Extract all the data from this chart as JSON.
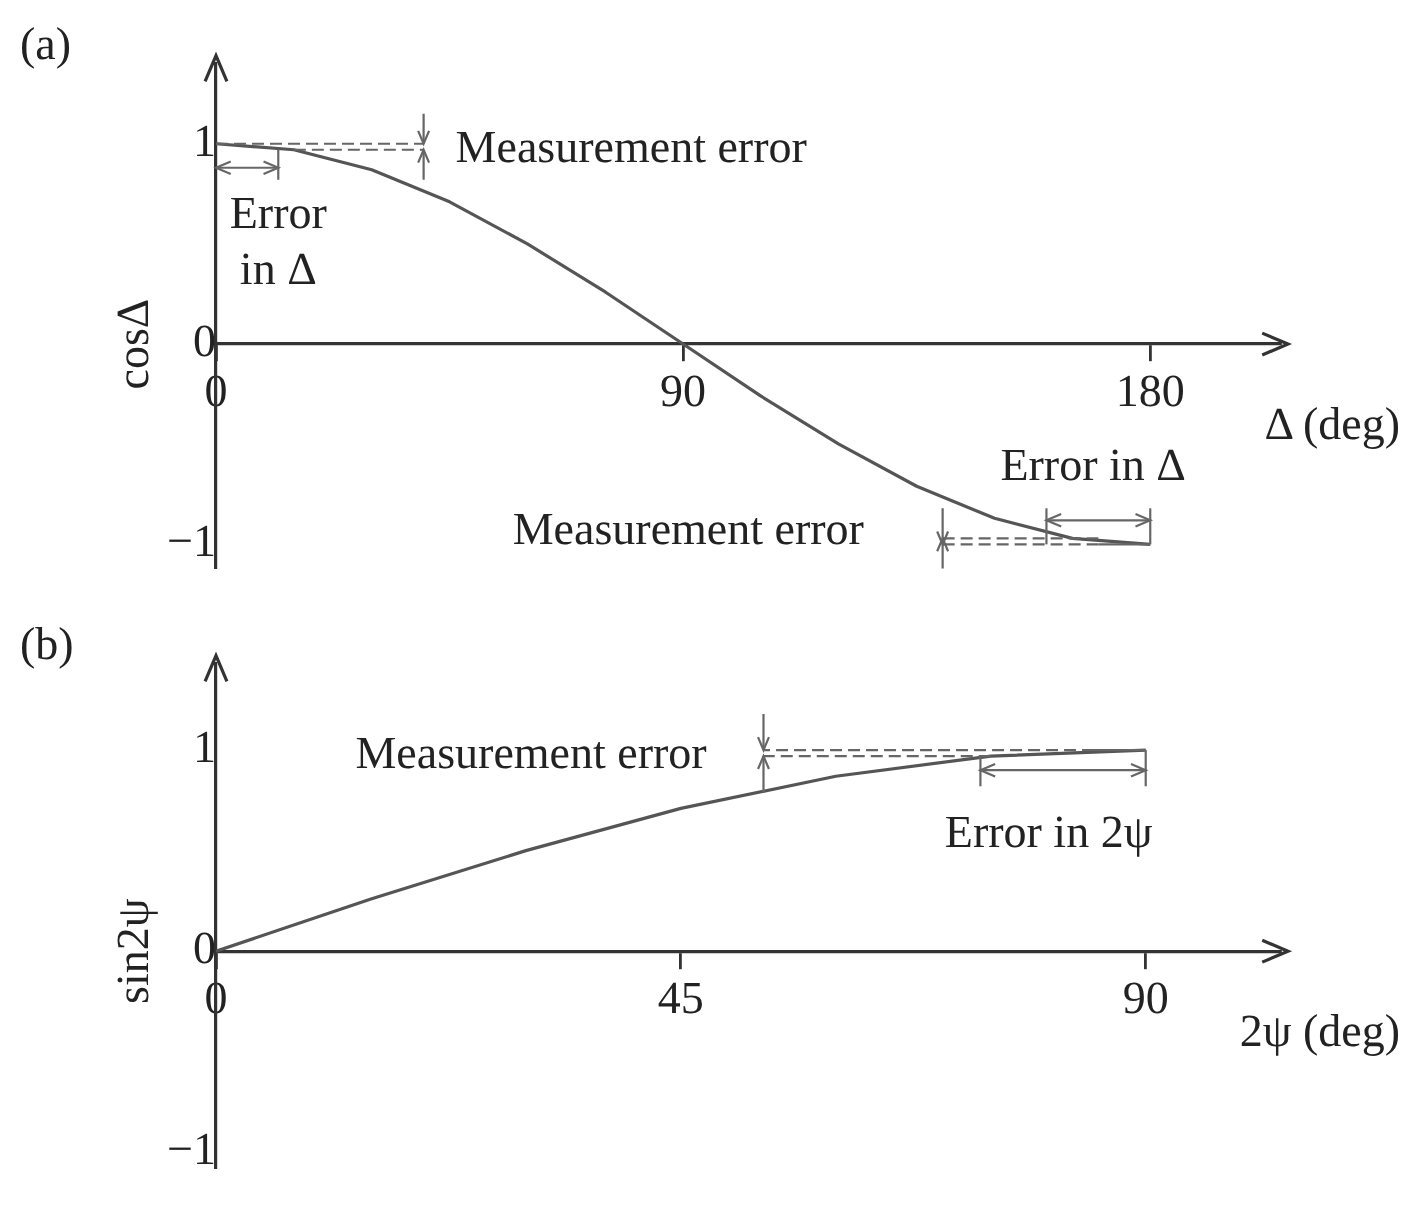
{
  "chart_data": [
    {
      "type": "line",
      "title": "(a)",
      "xlabel": "Δ (deg)",
      "ylabel": "cosΔ",
      "color": "#555555",
      "x": [
        0,
        15,
        30,
        45,
        60,
        75,
        90,
        105,
        120,
        135,
        150,
        165,
        180
      ],
      "values": [
        1,
        0.97,
        0.87,
        0.71,
        0.5,
        0.26,
        0,
        -0.26,
        -0.5,
        -0.71,
        -0.87,
        -0.97,
        -1
      ],
      "xlim": [
        0,
        205
      ],
      "ylim": [
        -1.12,
        1.4
      ],
      "xticks": [
        0,
        90,
        180
      ],
      "yticks": [
        -1,
        0,
        1
      ],
      "annotations": [
        {
          "text": "Measurement error",
          "x": 15,
          "y": 0.97
        },
        "Error\nin Δ",
        "Error in Δ",
        "Measurement error"
      ]
    },
    {
      "type": "line",
      "title": "(b)",
      "xlabel": "2ψ (deg)",
      "ylabel": "sin2ψ",
      "color": "#555555",
      "x": [
        0,
        15,
        30,
        45,
        60,
        75,
        90
      ],
      "values": [
        0,
        0.26,
        0.5,
        0.71,
        0.87,
        0.97,
        1
      ],
      "xlim": [
        0,
        103
      ],
      "ylim": [
        -1.08,
        1.43
      ],
      "xticks": [
        0,
        45,
        90
      ],
      "yticks": [
        -1,
        0,
        1
      ],
      "annotations": [
        {
          "text": "Measurement error",
          "x": 75,
          "y": 0.97
        },
        "Error in 2ψ"
      ]
    }
  ]
}
